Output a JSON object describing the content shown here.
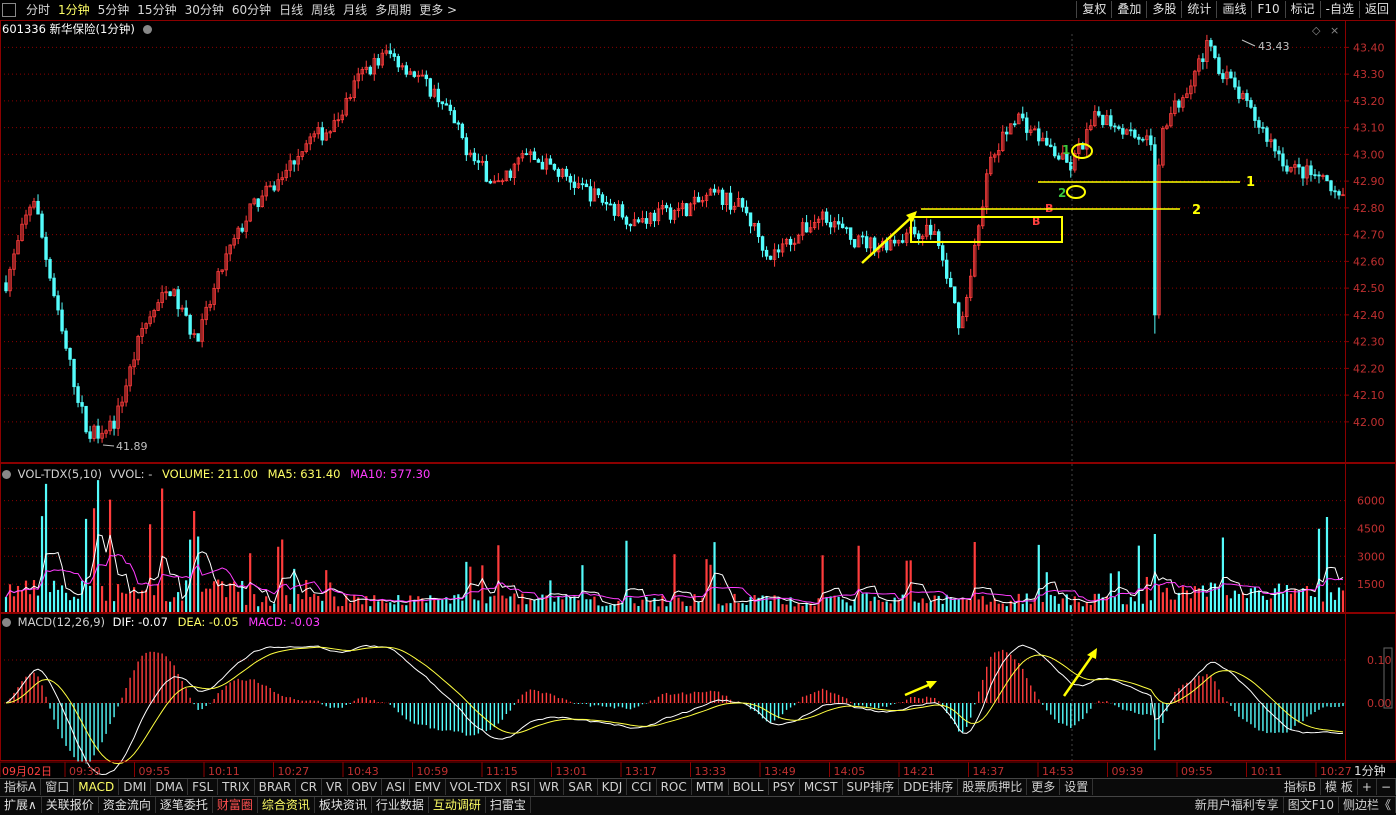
{
  "toolbar": {
    "periods": [
      "分时",
      "1分钟",
      "5分钟",
      "15分钟",
      "30分钟",
      "60分钟",
      "日线",
      "周线",
      "月线",
      "多周期",
      "更多 >"
    ],
    "active_period": "1分钟",
    "right_tools": [
      "复权",
      "叠加",
      "多股",
      "统计",
      "画线",
      "F10",
      "标记",
      "-自选",
      "返回"
    ]
  },
  "main_header": {
    "code_name": "601336 新华保险(1分钟)"
  },
  "vol_header": {
    "name": "VOL-TDX(5,10)",
    "vvol": "VVOL: -",
    "volume": "VOLUME: 211.00",
    "ma5": "MA5: 631.40",
    "ma10": "MA10: 577.30"
  },
  "macd_header": {
    "name": "MACD(12,26,9)",
    "dif": "DIF: -0.07",
    "dea": "DEA: -0.05",
    "macd": "MACD: -0.03"
  },
  "annotations": {
    "max_label": "43.43",
    "min_label": "41.89",
    "line1": "1",
    "line2": "2",
    "mark1": "1",
    "mark2": "2",
    "b1": "B",
    "b2": "B"
  },
  "chart_data": {
    "type": "candlestick",
    "title": "601336 新华保险(1分钟)",
    "price_axis": {
      "ticks": [
        "43.40",
        "43.30",
        "43.20",
        "43.10",
        "43.00",
        "42.90",
        "42.80",
        "42.70",
        "42.60",
        "42.50",
        "42.40",
        "42.30",
        "42.20",
        "42.10",
        "42.00"
      ],
      "range": [
        41.85,
        43.45
      ]
    },
    "price_path_approx": [
      {
        "t": "09:31",
        "p": 42.52
      },
      {
        "t": "09:33",
        "p": 42.85
      },
      {
        "t": "09:36",
        "p": 42.35
      },
      {
        "t": "09:40",
        "p": 41.95
      },
      {
        "t": "09:43",
        "p": 42.0
      },
      {
        "t": "09:48",
        "p": 42.35
      },
      {
        "t": "09:55",
        "p": 42.5
      },
      {
        "t": "10:00",
        "p": 42.3
      },
      {
        "t": "10:05",
        "p": 42.6
      },
      {
        "t": "10:15",
        "p": 42.8
      },
      {
        "t": "10:24",
        "p": 42.9
      },
      {
        "t": "10:30",
        "p": 43.05
      },
      {
        "t": "10:36",
        "p": 43.1
      },
      {
        "t": "10:40",
        "p": 43.3
      },
      {
        "t": "10:43",
        "p": 43.38
      },
      {
        "t": "10:50",
        "p": 43.3
      },
      {
        "t": "10:59",
        "p": 43.2
      },
      {
        "t": "11:05",
        "p": 43.0
      },
      {
        "t": "11:10",
        "p": 42.88
      },
      {
        "t": "11:20",
        "p": 43.0
      },
      {
        "t": "13:01",
        "p": 42.95
      },
      {
        "t": "13:10",
        "p": 42.88
      },
      {
        "t": "13:17",
        "p": 42.82
      },
      {
        "t": "13:25",
        "p": 42.75
      },
      {
        "t": "13:33",
        "p": 42.78
      },
      {
        "t": "13:42",
        "p": 42.8
      },
      {
        "t": "13:49",
        "p": 42.85
      },
      {
        "t": "13:57",
        "p": 42.8
      },
      {
        "t": "14:05",
        "p": 42.62
      },
      {
        "t": "14:12",
        "p": 42.7
      },
      {
        "t": "14:21",
        "p": 42.78
      },
      {
        "t": "14:29",
        "p": 42.68
      },
      {
        "t": "14:37",
        "p": 42.66
      },
      {
        "t": "14:45",
        "p": 42.7
      },
      {
        "t": "14:53",
        "p": 42.72
      },
      {
        "t": "14:57",
        "p": 42.35
      },
      {
        "t": "09:31",
        "p": 42.95
      },
      {
        "t": "09:35",
        "p": 43.15
      },
      {
        "t": "09:39",
        "p": 43.05
      },
      {
        "t": "09:45",
        "p": 42.95
      },
      {
        "t": "09:50",
        "p": 43.15
      },
      {
        "t": "09:55",
        "p": 43.1
      },
      {
        "t": "10:00",
        "p": 43.05
      },
      {
        "t": "10:05",
        "p": 43.2
      },
      {
        "t": "10:09",
        "p": 43.4
      },
      {
        "t": "10:11",
        "p": 43.25
      },
      {
        "t": "10:17",
        "p": 43.1
      },
      {
        "t": "10:23",
        "p": 42.95
      },
      {
        "t": "10:27",
        "p": 42.92
      },
      {
        "t": "10:30",
        "p": 42.82
      }
    ],
    "high": 43.43,
    "low": 41.89,
    "volume_axis": {
      "ticks": [
        "6000",
        "4500",
        "3000",
        "1500"
      ]
    },
    "macd_axis": {
      "ticks": [
        "0.10",
        "0.00"
      ]
    },
    "x_ticks": [
      "09月02日",
      "09:39",
      "09:55",
      "10:11",
      "10:27",
      "10:43",
      "10:59",
      "11:15",
      "13:01",
      "13:17",
      "13:33",
      "13:49",
      "14:05",
      "14:21",
      "14:37",
      "14:53",
      "09:39",
      "09:55",
      "10:11",
      "10:27"
    ],
    "period_label": "1分钟",
    "levels": [
      {
        "name": "1",
        "price": 42.89
      },
      {
        "name": "2",
        "price": 42.79
      }
    ]
  },
  "bottom_tabs1": [
    "指标A",
    "窗口",
    "MACD",
    "DMI",
    "DMA",
    "FSL",
    "TRIX",
    "BRAR",
    "CR",
    "VR",
    "OBV",
    "ASI",
    "EMV",
    "VOL-TDX",
    "RSI",
    "WR",
    "SAR",
    "KDJ",
    "CCI",
    "ROC",
    "MTM",
    "BOLL",
    "PSY",
    "MCST",
    "SUP排序",
    "DDE排序",
    "股票质押比",
    "更多",
    "设置"
  ],
  "bottom_tabs1_right": [
    "指标B",
    "模 板",
    "+",
    "−"
  ],
  "bottom_tabs2": [
    "扩展∧",
    "关联报价",
    "资金流向",
    "逐笔委托",
    "财富圈",
    "综合资讯",
    "板块资讯",
    "行业数据",
    "互动调研",
    "扫雷宝"
  ],
  "bottom_tabs2_right": [
    "新用户福利专享",
    "图文F10",
    "侧边栏《"
  ],
  "colors": {
    "up": "#ff3c3c",
    "down": "#54fcfc",
    "ma5": "#ffffff",
    "ma10": "#ff3cff",
    "dif": "#ffffff",
    "dea": "#ffff40",
    "annot": "#ffff00",
    "grid": "#8b0000"
  }
}
